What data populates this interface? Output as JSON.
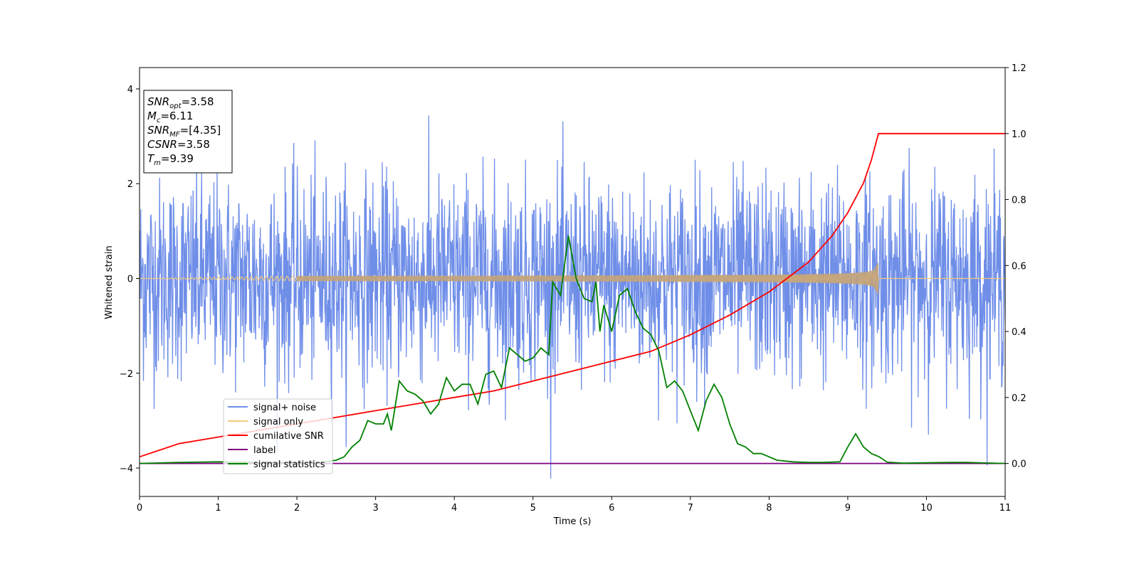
{
  "chart_data": {
    "type": "line",
    "xlabel": "Time (s)",
    "ylabel": "Whitened strain",
    "xlim": [
      0,
      11
    ],
    "ylim_left": [
      -4.6,
      4.45
    ],
    "ylim_right": [
      -0.1,
      1.2
    ],
    "x_ticks": [
      0,
      1,
      2,
      3,
      4,
      5,
      6,
      7,
      8,
      9,
      10,
      11
    ],
    "y_ticks_left": [
      -4,
      -2,
      0,
      2,
      4
    ],
    "y_ticks_right": [
      "0.0",
      "0.2",
      "0.4",
      "0.6",
      "0.8",
      "1.0",
      "1.2"
    ],
    "grid": false,
    "legend_position": "lower-left",
    "info_box": {
      "lines": [
        {
          "main": "SNR",
          "sub": "opt",
          "value": "=3.58"
        },
        {
          "main": "M",
          "sub": "c",
          "value": "=6.11"
        },
        {
          "main": "SNR",
          "sub": "MF",
          "value": "=[4.35]"
        },
        {
          "main": "CSNR",
          "sub": "",
          "value": "=3.58"
        },
        {
          "main": "T",
          "sub": "m",
          "value": "=9.39"
        }
      ]
    },
    "series": [
      {
        "name": "signal+ noise",
        "axis": "left",
        "color": "#6f8ee8",
        "description_values": {
          "std": 1.0,
          "sample_rate_hz": 200,
          "duration_s": 11
        }
      },
      {
        "name": "signal only",
        "axis": "left",
        "color": "#f5c97a",
        "chirp": {
          "merger_time": 9.39,
          "max_amplitude": 0.35
        }
      },
      {
        "name": "cumilative SNR",
        "axis": "right",
        "color": "#ff0000",
        "x": [
          0,
          0.5,
          1,
          1.5,
          2,
          2.5,
          3,
          3.5,
          4,
          4.5,
          5,
          5.5,
          6,
          6.5,
          7,
          7.5,
          8,
          8.5,
          8.8,
          9.0,
          9.2,
          9.3,
          9.39,
          11
        ],
        "values": [
          0.02,
          0.06,
          0.08,
          0.1,
          0.12,
          0.14,
          0.16,
          0.18,
          0.2,
          0.22,
          0.25,
          0.28,
          0.31,
          0.34,
          0.39,
          0.45,
          0.52,
          0.61,
          0.69,
          0.76,
          0.85,
          0.92,
          1.0,
          1.0
        ]
      },
      {
        "name": "label",
        "axis": "right",
        "color": "#800080",
        "x": [
          0,
          11
        ],
        "values": [
          0.0,
          0.0
        ]
      },
      {
        "name": "signal statistics",
        "axis": "right",
        "color": "#008000",
        "x": [
          0,
          0.5,
          1.0,
          1.5,
          2.0,
          2.3,
          2.5,
          2.6,
          2.7,
          2.8,
          2.9,
          3.0,
          3.1,
          3.15,
          3.2,
          3.3,
          3.4,
          3.5,
          3.6,
          3.7,
          3.8,
          3.9,
          4.0,
          4.1,
          4.2,
          4.3,
          4.4,
          4.5,
          4.6,
          4.7,
          4.8,
          4.9,
          5.0,
          5.1,
          5.2,
          5.25,
          5.35,
          5.45,
          5.55,
          5.65,
          5.75,
          5.8,
          5.85,
          5.9,
          6.0,
          6.1,
          6.2,
          6.3,
          6.4,
          6.5,
          6.6,
          6.7,
          6.8,
          6.9,
          7.0,
          7.1,
          7.2,
          7.3,
          7.4,
          7.5,
          7.6,
          7.7,
          7.8,
          7.9,
          8.0,
          8.1,
          8.3,
          8.5,
          8.7,
          8.9,
          9.0,
          9.1,
          9.2,
          9.3,
          9.4,
          9.5,
          9.7,
          10.0,
          10.3,
          10.5,
          11.0
        ],
        "values": [
          0.0,
          0.003,
          0.005,
          0.003,
          0.003,
          0.003,
          0.01,
          0.02,
          0.05,
          0.07,
          0.13,
          0.12,
          0.12,
          0.15,
          0.1,
          0.25,
          0.22,
          0.21,
          0.19,
          0.15,
          0.18,
          0.26,
          0.22,
          0.24,
          0.24,
          0.18,
          0.27,
          0.28,
          0.23,
          0.35,
          0.33,
          0.31,
          0.32,
          0.35,
          0.33,
          0.55,
          0.51,
          0.69,
          0.56,
          0.5,
          0.49,
          0.55,
          0.4,
          0.48,
          0.4,
          0.51,
          0.53,
          0.46,
          0.41,
          0.39,
          0.34,
          0.23,
          0.25,
          0.22,
          0.16,
          0.1,
          0.19,
          0.24,
          0.2,
          0.12,
          0.06,
          0.05,
          0.03,
          0.03,
          0.02,
          0.01,
          0.005,
          0.003,
          0.003,
          0.005,
          0.05,
          0.09,
          0.05,
          0.03,
          0.02,
          0.004,
          0.001,
          0.002,
          0.003,
          0.003,
          0.0
        ]
      }
    ]
  }
}
